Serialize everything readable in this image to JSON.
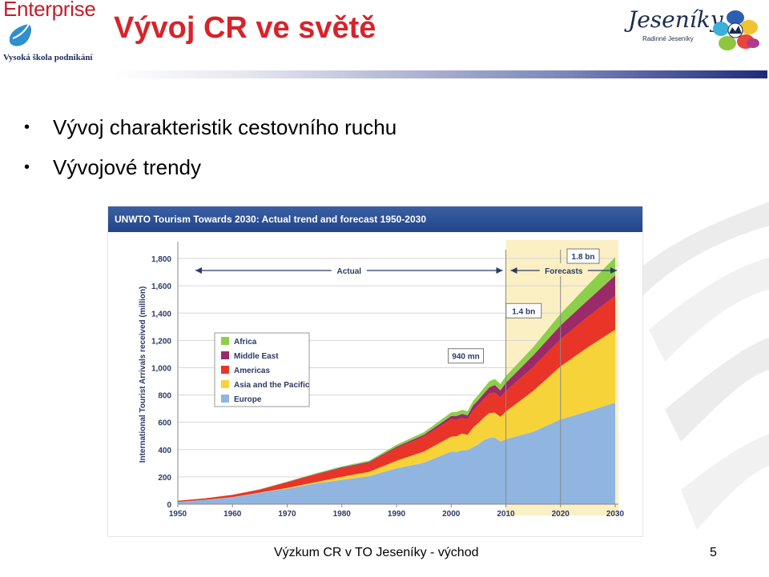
{
  "logos": {
    "left_name": "Enterprise",
    "left_school": "Vysoká škola podnikání",
    "right_name": "Jeseníky",
    "right_sub": "Radinné Jeseníky"
  },
  "slide": {
    "title": "Vývoj CR ve světě",
    "bullets": [
      "Vývoj charakteristik cestovního ruchu",
      "Vývojové trendy"
    ],
    "footer": "Výzkum CR v TO Jeseníky - východ",
    "page_number": "5"
  },
  "chart_data": {
    "type": "area",
    "title": "UNWTO Tourism Towards 2030: Actual trend and forecast 1950-2030",
    "ylabel": "International Tourist Arrivals received (million)",
    "xlabel": "",
    "x_ticks": [
      "1950",
      "1960",
      "1970",
      "1980",
      "1990",
      "2000",
      "2010",
      "2020",
      "2030"
    ],
    "y_ticks": [
      "0",
      "200",
      "400",
      "600",
      "800",
      "1,000",
      "1,200",
      "1,400",
      "1,600",
      "1,800"
    ],
    "ylim": [
      0,
      1900
    ],
    "xlim": [
      1950,
      2030
    ],
    "stacked": true,
    "legend_position": "upper-left",
    "x": [
      1950,
      1955,
      1960,
      1965,
      1970,
      1975,
      1980,
      1985,
      1990,
      1995,
      2000,
      2001,
      2002,
      2003,
      2004,
      2005,
      2006,
      2007,
      2008,
      2009,
      2010,
      2015,
      2020,
      2025,
      2030
    ],
    "series": [
      {
        "name": "Europe",
        "color": "#8fb5e0",
        "values": [
          17,
          31,
          50,
          83,
          113,
          150,
          178,
          205,
          262,
          304,
          385,
          383,
          394,
          396,
          418,
          440,
          469,
          486,
          487,
          459,
          475,
          530,
          620,
          680,
          744
        ]
      },
      {
        "name": "Asia and the Pacific",
        "color": "#f7d33a",
        "values": [
          0.2,
          0.5,
          1,
          2,
          6,
          10,
          23,
          32,
          56,
          82,
          110,
          115,
          124,
          112,
          144,
          155,
          167,
          182,
          184,
          181,
          204,
          300,
          390,
          470,
          535
        ]
      },
      {
        "name": "Americas",
        "color": "#e83528",
        "values": [
          8,
          11,
          17,
          22,
          42,
          55,
          62,
          65,
          93,
          109,
          128,
          120,
          114,
          113,
          125,
          133,
          135,
          143,
          147,
          141,
          150,
          175,
          199,
          224,
          248
        ]
      },
      {
        "name": "Middle East",
        "color": "#9b2a68",
        "values": [
          0.2,
          0.6,
          0.6,
          1,
          1.9,
          4,
          7,
          8,
          10,
          13,
          24,
          29,
          30,
          30,
          36,
          37,
          41,
          46,
          55,
          53,
          60,
          85,
          101,
          121,
          149
        ]
      },
      {
        "name": "Africa",
        "color": "#8ccf4a",
        "values": [
          0.5,
          1,
          0.8,
          1.5,
          2.4,
          4.6,
          7,
          9.6,
          15,
          19,
          26,
          29,
          30,
          31,
          34,
          37,
          41,
          45,
          44,
          46,
          50,
          60,
          85,
          110,
          134
        ]
      }
    ],
    "annotations": {
      "actual_label": "Actual",
      "forecast_label": "Forecasts",
      "point_labels": [
        {
          "text": "940 mn",
          "year": 2010,
          "value": 940
        },
        {
          "text": "1.4 bn",
          "year": 2020,
          "value": 1400
        },
        {
          "text": "1.8 bn",
          "year": 2030,
          "value": 1800
        }
      ]
    }
  }
}
